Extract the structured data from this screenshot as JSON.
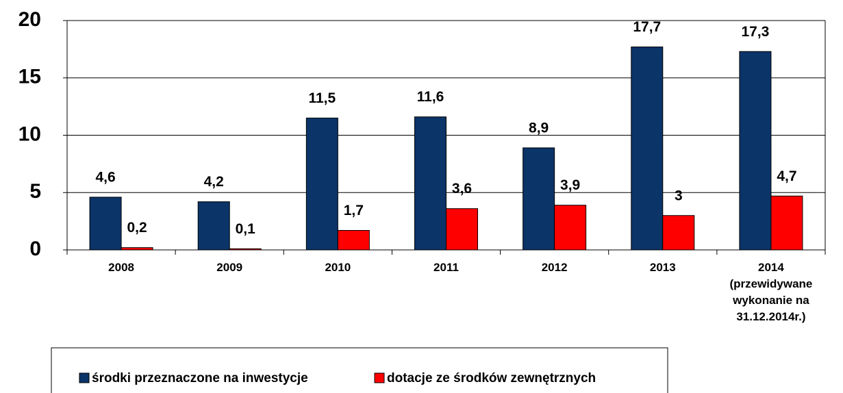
{
  "chart_data": {
    "type": "bar",
    "categories": [
      "2008",
      "2009",
      "2010",
      "2011",
      "2012",
      "2013",
      "2014\n(przewidywane\nwykonanie na\n31.12.2014r.)"
    ],
    "series": [
      {
        "name": "środki przeznaczone na inwestycje",
        "color": "#0b3468",
        "values": [
          4.6,
          4.2,
          11.5,
          11.6,
          8.9,
          17.7,
          17.3
        ],
        "value_labels": [
          "4,6",
          "4,2",
          "11,5",
          "11,6",
          "8,9",
          "17,7",
          "17,3"
        ]
      },
      {
        "name": "dotacje ze środków zewnętrznych",
        "color": "#ff0000",
        "values": [
          0.2,
          0.1,
          1.7,
          3.6,
          3.9,
          3,
          4.7
        ],
        "value_labels": [
          "0,2",
          "0,1",
          "1,7",
          "3,6",
          "3,9",
          "3",
          "4,7"
        ]
      }
    ],
    "ylim": [
      0,
      20
    ],
    "yticks": [
      0,
      5,
      10,
      15,
      20
    ],
    "grid": true,
    "legend": "bottom"
  }
}
